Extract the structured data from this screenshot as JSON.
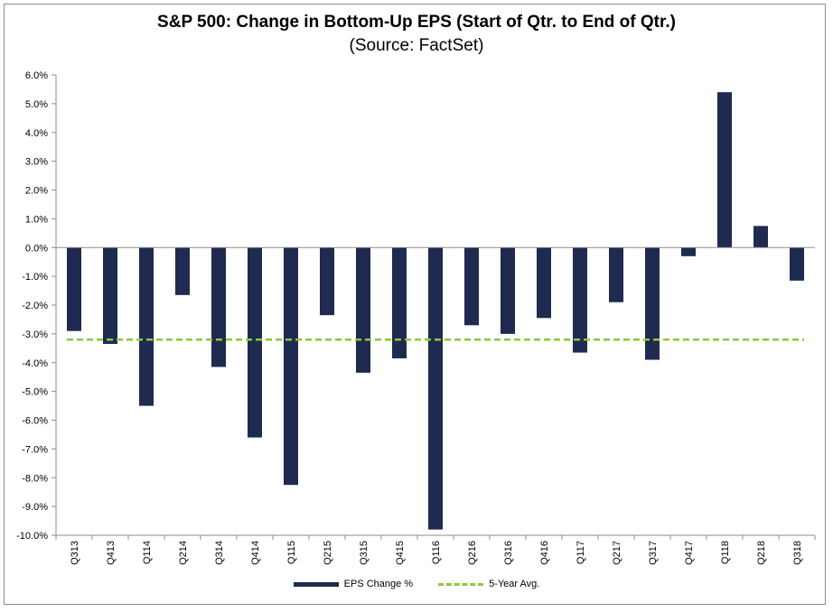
{
  "chart_data": {
    "type": "bar",
    "title": "S&P 500: Change in Bottom-Up EPS (Start of Qtr. to End of Qtr.)",
    "subtitle": "(Source: FactSet)",
    "categories": [
      "Q313",
      "Q413",
      "Q114",
      "Q214",
      "Q314",
      "Q414",
      "Q115",
      "Q215",
      "Q315",
      "Q415",
      "Q116",
      "Q216",
      "Q316",
      "Q416",
      "Q117",
      "Q217",
      "Q317",
      "Q417",
      "Q118",
      "Q218",
      "Q318"
    ],
    "series": [
      {
        "name": "EPS Change %",
        "color": "#1f2a50",
        "values": [
          -2.9,
          -3.35,
          -5.5,
          -1.65,
          -4.15,
          -6.6,
          -8.25,
          -2.35,
          -4.35,
          -3.85,
          -9.8,
          -2.7,
          -3.0,
          -2.45,
          -3.65,
          -1.9,
          -3.9,
          -0.3,
          5.4,
          0.75,
          -1.15
        ]
      }
    ],
    "reference_line": {
      "name": "5-Year Avg.",
      "value": -3.2,
      "color": "#8dc63f",
      "style": "dashed"
    },
    "ylim": [
      -10,
      6
    ],
    "yticks": [
      6,
      5,
      4,
      3,
      2,
      1,
      0,
      -1,
      -2,
      -3,
      -4,
      -5,
      -6,
      -7,
      -8,
      -9,
      -10
    ],
    "ytick_labels": [
      "6.0%",
      "5.0%",
      "4.0%",
      "3.0%",
      "2.0%",
      "1.0%",
      "0.0%",
      "-1.0%",
      "-2.0%",
      "-3.0%",
      "-4.0%",
      "-5.0%",
      "-6.0%",
      "-7.0%",
      "-8.0%",
      "-9.0%",
      "-10.0%"
    ],
    "legend_position": "bottom",
    "grid": false
  }
}
